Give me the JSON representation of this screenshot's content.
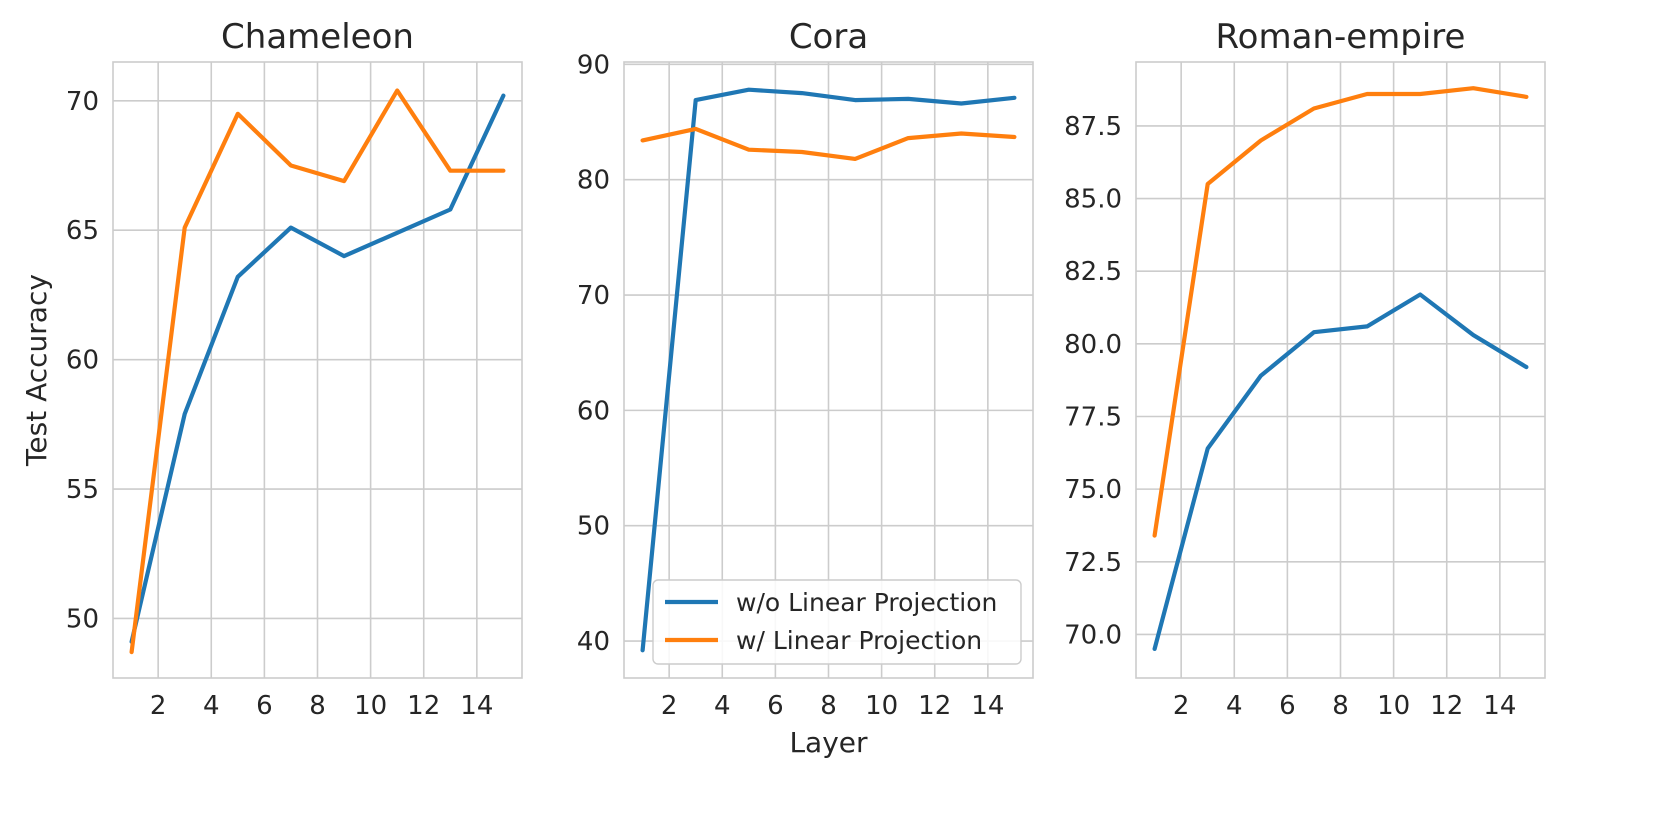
{
  "chart_data": [
    {
      "type": "line",
      "title": "Chameleon",
      "xlabel": "",
      "ylabel": "Test Accuracy",
      "xlim": [
        0.3,
        15.7
      ],
      "ylim": [
        47.7,
        71.5
      ],
      "xticks": [
        "2",
        "4",
        "6",
        "8",
        "10",
        "12",
        "14"
      ],
      "yticks": [
        "50",
        "55",
        "60",
        "65",
        "70"
      ],
      "x": [
        1,
        3,
        5,
        7,
        9,
        11,
        13,
        15
      ],
      "series": [
        {
          "name": "w/o Linear Projection",
          "color": "#1f77b4",
          "values": [
            49.1,
            57.9,
            63.2,
            65.1,
            64.0,
            64.9,
            65.8,
            70.2
          ]
        },
        {
          "name": "w/ Linear Projection",
          "color": "#ff7f0e",
          "values": [
            48.7,
            65.1,
            69.5,
            67.5,
            66.9,
            70.4,
            67.3,
            67.3
          ]
        }
      ]
    },
    {
      "type": "line",
      "title": "Cora",
      "xlabel": "Layer",
      "ylabel": "",
      "xlim": [
        0.3,
        15.7
      ],
      "ylim": [
        36.8,
        90.2
      ],
      "xticks": [
        "2",
        "4",
        "6",
        "8",
        "10",
        "12",
        "14"
      ],
      "yticks": [
        "40",
        "50",
        "60",
        "70",
        "80",
        "90"
      ],
      "x": [
        1,
        3,
        5,
        7,
        9,
        11,
        13,
        15
      ],
      "series": [
        {
          "name": "w/o Linear Projection",
          "color": "#1f77b4",
          "values": [
            39.2,
            86.9,
            87.8,
            87.5,
            86.9,
            87.0,
            86.6,
            87.1
          ]
        },
        {
          "name": "w/ Linear Projection",
          "color": "#ff7f0e",
          "values": [
            83.4,
            84.4,
            82.6,
            82.4,
            81.8,
            83.6,
            84.0,
            83.7
          ]
        }
      ],
      "legend": {
        "location": "lower-right",
        "entries": [
          "w/o Linear Projection",
          "w/ Linear Projection"
        ]
      }
    },
    {
      "type": "line",
      "title": "Roman-empire",
      "xlabel": "",
      "ylabel": "",
      "xlim": [
        0.3,
        15.7
      ],
      "ylim": [
        68.5,
        89.7
      ],
      "xticks": [
        "2",
        "4",
        "6",
        "8",
        "10",
        "12",
        "14"
      ],
      "yticks": [
        "70.0",
        "72.5",
        "75.0",
        "77.5",
        "80.0",
        "82.5",
        "85.0",
        "87.5"
      ],
      "x": [
        1,
        3,
        5,
        7,
        9,
        11,
        13,
        15
      ],
      "series": [
        {
          "name": "w/o Linear Projection",
          "color": "#1f77b4",
          "values": [
            69.5,
            76.4,
            78.9,
            80.4,
            80.6,
            81.7,
            80.3,
            79.2
          ]
        },
        {
          "name": "w/ Linear Projection",
          "color": "#ff7f0e",
          "values": [
            73.4,
            85.5,
            87.0,
            88.1,
            88.6,
            88.6,
            88.8,
            88.5
          ]
        }
      ]
    }
  ]
}
